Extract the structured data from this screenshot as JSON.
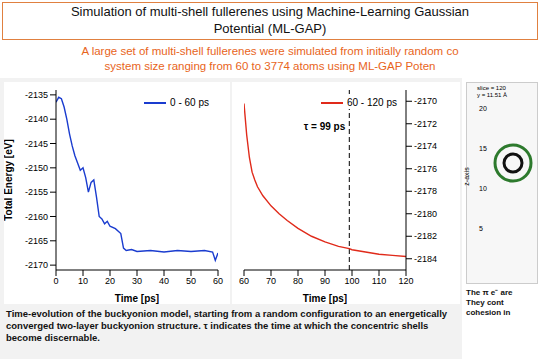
{
  "header": {
    "title": [
      "Simulation of multi-shell fullerenes using Machine-Learning Gaussian",
      "Potential (ML-GAP)"
    ],
    "subtitle": [
      "A large set of multi-shell fullerenes were simulated from initially random co",
      "system size ranging from 60 to 3774 atoms using ML-GAP Poten"
    ]
  },
  "chart_data": [
    {
      "type": "line",
      "x": [
        0,
        1,
        2,
        3,
        4,
        5,
        6,
        7,
        8,
        9,
        10,
        11,
        12,
        13,
        14,
        15,
        16,
        17,
        18,
        19,
        20,
        22,
        24,
        25,
        26,
        28,
        30,
        35,
        40,
        45,
        50,
        55,
        58,
        59,
        60
      ],
      "series": [
        {
          "name": "0 - 60 ps",
          "color": "#1a3ccf",
          "values": [
            -2136.5,
            -2135.5,
            -2135.8,
            -2137.5,
            -2140,
            -2143,
            -2145.5,
            -2147.5,
            -2149,
            -2150.5,
            -2150,
            -2152,
            -2155,
            -2153,
            -2152.5,
            -2156,
            -2160,
            -2160.5,
            -2161.5,
            -2161,
            -2162,
            -2162.5,
            -2163.5,
            -2166.5,
            -2167,
            -2166.8,
            -2167.2,
            -2167,
            -2167.3,
            -2167,
            -2167.2,
            -2167,
            -2167.3,
            -2169,
            -2167.5
          ]
        }
      ],
      "xlabel": "Time [ps]",
      "ylabel": "Total Energy [eV]",
      "xlim": [
        0,
        60
      ],
      "xticks": [
        0,
        10,
        20,
        30,
        40,
        50,
        60
      ],
      "ylim": [
        -2171,
        -2134
      ],
      "yticks": [
        -2135,
        -2140,
        -2145,
        -2150,
        -2155,
        -2160,
        -2165,
        -2170
      ],
      "legend": "upper right",
      "grid": false
    },
    {
      "type": "line",
      "x": [
        60,
        61,
        62,
        63,
        64,
        65,
        67,
        70,
        73,
        76,
        80,
        85,
        90,
        95,
        99,
        100,
        105,
        110,
        115,
        120
      ],
      "series": [
        {
          "name": "60 - 120 ps",
          "color": "#e02a1a",
          "values": [
            -2170.2,
            -2173,
            -2175,
            -2176.3,
            -2177,
            -2177.6,
            -2178.4,
            -2179.3,
            -2180,
            -2180.6,
            -2181.3,
            -2182,
            -2182.5,
            -2182.9,
            -2183.1,
            -2183.2,
            -2183.4,
            -2183.6,
            -2183.7,
            -2183.8
          ]
        }
      ],
      "xlabel": "Time [ps]",
      "xlim": [
        60,
        120
      ],
      "xticks": [
        60,
        70,
        80,
        90,
        100,
        110,
        120
      ],
      "ylim": [
        -2185,
        -2169
      ],
      "yticks": [
        -2170,
        -2172,
        -2174,
        -2176,
        -2178,
        -2180,
        -2182,
        -2184
      ],
      "legend": "upper right",
      "grid": false,
      "reference_line": {
        "x": 99,
        "label": "τ = 99 ps",
        "line_style": "dashed"
      }
    }
  ],
  "caption": "Time-evolution of the buckyonion model, starting from a random configuration to an energetically converged two-layer buckyonion structure. τ indicates the time at which the concentric shells become discernable.",
  "inset": {
    "labels": [
      "slice = 120",
      "y = 11.51 Å"
    ],
    "axis_label": "z-axis",
    "yticks": [
      20,
      15,
      10,
      5
    ],
    "text": [
      "The π e⁻ are",
      "They cont",
      "cohesion in"
    ]
  }
}
